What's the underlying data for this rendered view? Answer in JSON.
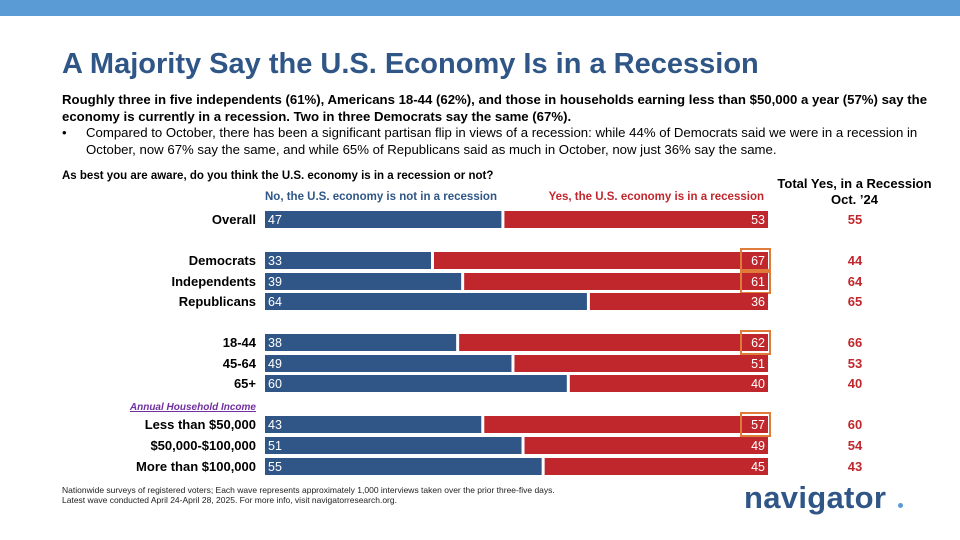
{
  "header": {
    "title": "A Majority Say the U.S. Economy Is in a Recession",
    "subtitle": "Roughly three in five independents (61%), Americans 18-44 (62%), and those in households earning less than $50,000 a year (57%) say the economy is currently in a recession. Two in three Democrats say the same (67%).",
    "bullet_symbol": "•",
    "bullet": "Compared to October, there has been a significant partisan flip in views of a recession: while 44% of Democrats said we were in a recession in October, now 67% say the same, and while 65% of Republicans said as much in October, now just 36% say the same."
  },
  "chart_data": {
    "type": "bar",
    "orientation": "horizontal",
    "stacked": true,
    "question": "As best you are aware, do you think the U.S. economy is in a recession or not?",
    "series": [
      {
        "name": "No, the U.S. economy is not in a recession",
        "color": "#2f5686",
        "values": [
          47,
          33,
          39,
          64,
          38,
          49,
          60,
          43,
          51,
          55
        ]
      },
      {
        "name": "Yes, the U.S. economy is in a recession",
        "color": "#c0272d",
        "values": [
          53,
          67,
          61,
          36,
          62,
          51,
          40,
          57,
          49,
          45
        ]
      }
    ],
    "categories": [
      "Overall",
      "Democrats",
      "Independents",
      "Republicans",
      "18-44",
      "45-64",
      "65+",
      "Less than $50,000",
      "$50,000-$100,000",
      "More than $100,000"
    ],
    "group_label": "Annual Household Income",
    "highlighted_categories": [
      "Democrats",
      "Independents",
      "18-44",
      "Less than $50,000"
    ],
    "highlight_color": "#e07b39",
    "comparison": {
      "title_line1": "Total Yes, in a Recession",
      "title_line2": "Oct. ’24",
      "values": [
        55,
        44,
        64,
        65,
        66,
        53,
        40,
        60,
        54,
        43
      ],
      "color": "#c0272d"
    },
    "xlim": [
      0,
      100
    ]
  },
  "footer": {
    "note_line1": "Nationwide surveys of registered voters; Each wave represents approximately 1,000 interviews taken over the prior three-five days.",
    "note_line2": "Latest wave conducted April 24-April 28, 2025. For more info, visit navigatorresearch.org.",
    "logo": "navigator"
  }
}
